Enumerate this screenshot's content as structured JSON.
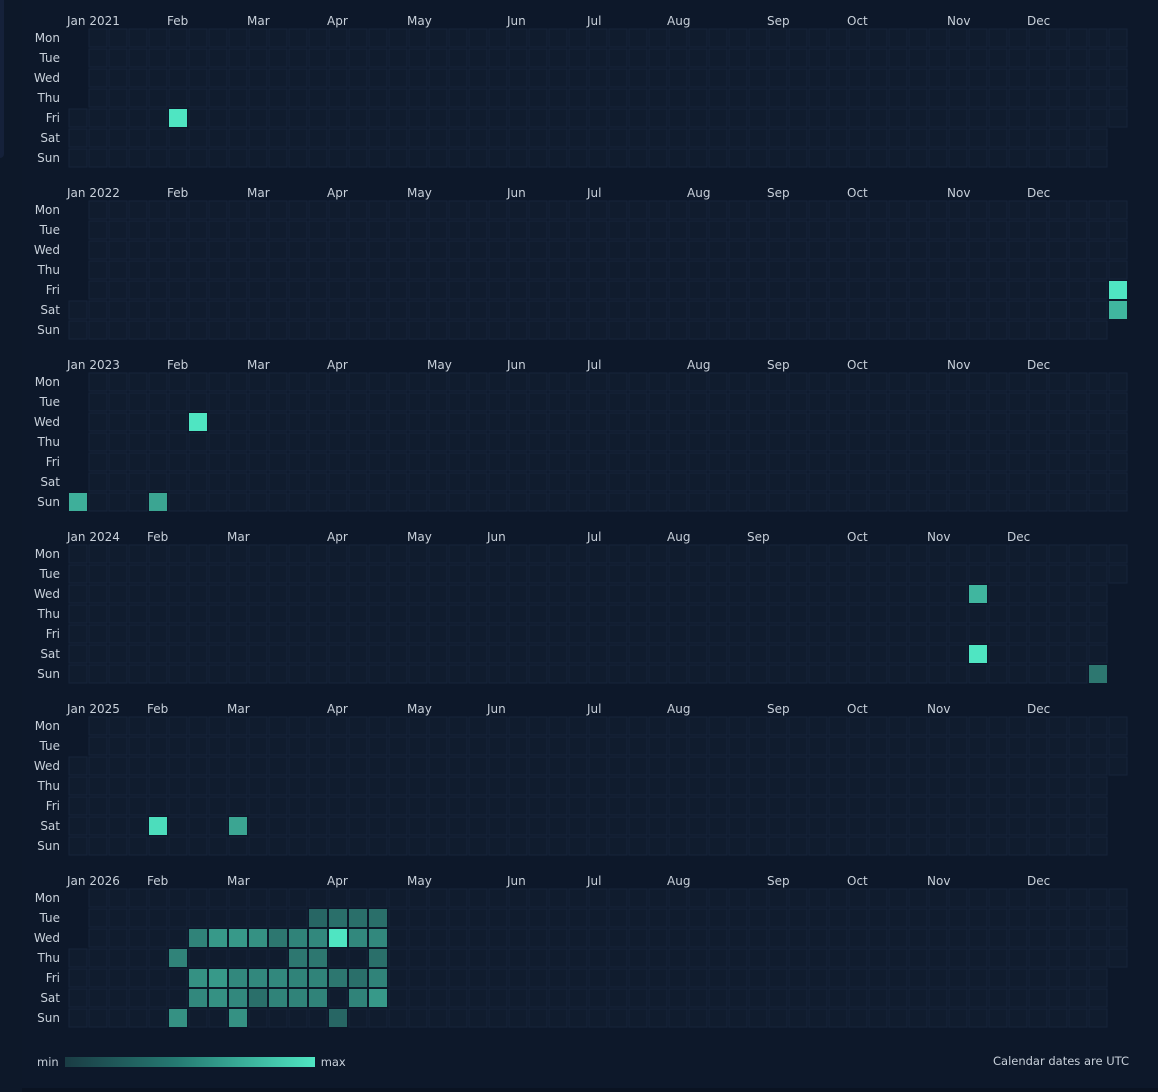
{
  "chart_data": {
    "type": "heatmap",
    "title": "",
    "legend": {
      "min_label": "min",
      "max_label": "max",
      "placement": "bottom-left"
    },
    "note": "Calendar dates are UTC",
    "colors": {
      "background": "#0d182a",
      "empty_cell": "#101c2e",
      "empty_cell_border": "#16243a",
      "scale_min": "#1a3c44",
      "scale_max": "#4fe5c2",
      "text": "#c8d0da"
    },
    "value_scale": [
      0,
      1
    ],
    "day_labels": [
      "Mon",
      "Tue",
      "Wed",
      "Thu",
      "Fri",
      "Sat",
      "Sun"
    ],
    "years": [
      {
        "year": 2021,
        "month_labels": [
          "Jan 2021",
          "Feb",
          "Mar",
          "Apr",
          "May",
          "Jun",
          "Jul",
          "Aug",
          "Sep",
          "Oct",
          "Nov",
          "Dec"
        ],
        "values": [
          {
            "date": "2021-02-05",
            "value": 1.0
          }
        ]
      },
      {
        "year": 2022,
        "month_labels": [
          "Jan 2022",
          "Feb",
          "Mar",
          "Apr",
          "May",
          "Jun",
          "Jul",
          "Aug",
          "Sep",
          "Oct",
          "Nov",
          "Dec"
        ],
        "values": [
          {
            "date": "2022-12-30",
            "value": 1.0
          },
          {
            "date": "2022-12-31",
            "value": 0.72
          }
        ]
      },
      {
        "year": 2023,
        "month_labels": [
          "Jan 2023",
          "Feb",
          "Mar",
          "Apr",
          "May",
          "Jun",
          "Jul",
          "Aug",
          "Sep",
          "Oct",
          "Nov",
          "Dec"
        ],
        "values": [
          {
            "date": "2023-01-01",
            "value": 0.68
          },
          {
            "date": "2023-01-29",
            "value": 0.62
          },
          {
            "date": "2023-02-08",
            "value": 1.0
          }
        ]
      },
      {
        "year": 2024,
        "month_labels": [
          "Jan 2024",
          "Feb",
          "Mar",
          "Apr",
          "May",
          "Jun",
          "Jul",
          "Aug",
          "Sep",
          "Oct",
          "Nov",
          "Dec"
        ],
        "values": [
          {
            "date": "2024-11-13",
            "value": 0.72
          },
          {
            "date": "2024-11-16",
            "value": 1.0
          },
          {
            "date": "2024-12-29",
            "value": 0.35
          }
        ]
      },
      {
        "year": 2025,
        "month_labels": [
          "Jan 2025",
          "Feb",
          "Mar",
          "Apr",
          "May",
          "Jun",
          "Jul",
          "Aug",
          "Sep",
          "Oct",
          "Nov",
          "Dec"
        ],
        "values": [
          {
            "date": "2025-02-01",
            "value": 0.95
          },
          {
            "date": "2025-03-01",
            "value": 0.62
          }
        ]
      },
      {
        "year": 2026,
        "month_labels": [
          "Jan 2026",
          "Feb",
          "Mar",
          "Apr",
          "May",
          "Jun",
          "Jul",
          "Aug",
          "Sep",
          "Oct",
          "Nov",
          "Dec"
        ],
        "values": [
          {
            "date": "2026-02-05",
            "value": 0.42
          },
          {
            "date": "2026-02-08",
            "value": 0.5
          },
          {
            "date": "2026-02-11",
            "value": 0.42
          },
          {
            "date": "2026-02-13",
            "value": 0.5
          },
          {
            "date": "2026-02-14",
            "value": 0.45
          },
          {
            "date": "2026-02-18",
            "value": 0.55
          },
          {
            "date": "2026-02-20",
            "value": 0.55
          },
          {
            "date": "2026-02-21",
            "value": 0.5
          },
          {
            "date": "2026-02-25",
            "value": 0.55
          },
          {
            "date": "2026-02-27",
            "value": 0.45
          },
          {
            "date": "2026-02-28",
            "value": 0.45
          },
          {
            "date": "2026-03-01",
            "value": 0.5
          },
          {
            "date": "2026-03-04",
            "value": 0.5
          },
          {
            "date": "2026-03-06",
            "value": 0.45
          },
          {
            "date": "2026-03-07",
            "value": 0.3
          },
          {
            "date": "2026-03-11",
            "value": 0.35
          },
          {
            "date": "2026-03-13",
            "value": 0.45
          },
          {
            "date": "2026-03-14",
            "value": 0.42
          },
          {
            "date": "2026-03-18",
            "value": 0.42
          },
          {
            "date": "2026-03-19",
            "value": 0.35
          },
          {
            "date": "2026-03-20",
            "value": 0.42
          },
          {
            "date": "2026-03-21",
            "value": 0.42
          },
          {
            "date": "2026-03-24",
            "value": 0.25
          },
          {
            "date": "2026-03-25",
            "value": 0.45
          },
          {
            "date": "2026-03-26",
            "value": 0.35
          },
          {
            "date": "2026-03-27",
            "value": 0.42
          },
          {
            "date": "2026-03-28",
            "value": 0.42
          },
          {
            "date": "2026-03-31",
            "value": 0.3
          },
          {
            "date": "2026-04-01",
            "value": 1.0
          },
          {
            "date": "2026-04-03",
            "value": 0.35
          },
          {
            "date": "2026-04-05",
            "value": 0.25
          },
          {
            "date": "2026-04-07",
            "value": 0.3
          },
          {
            "date": "2026-04-08",
            "value": 0.45
          },
          {
            "date": "2026-04-10",
            "value": 0.3
          },
          {
            "date": "2026-04-11",
            "value": 0.42
          },
          {
            "date": "2026-04-14",
            "value": 0.3
          },
          {
            "date": "2026-04-15",
            "value": 0.45
          },
          {
            "date": "2026-04-16",
            "value": 0.3
          },
          {
            "date": "2026-04-17",
            "value": 0.42
          },
          {
            "date": "2026-04-18",
            "value": 0.55
          }
        ]
      }
    ]
  }
}
